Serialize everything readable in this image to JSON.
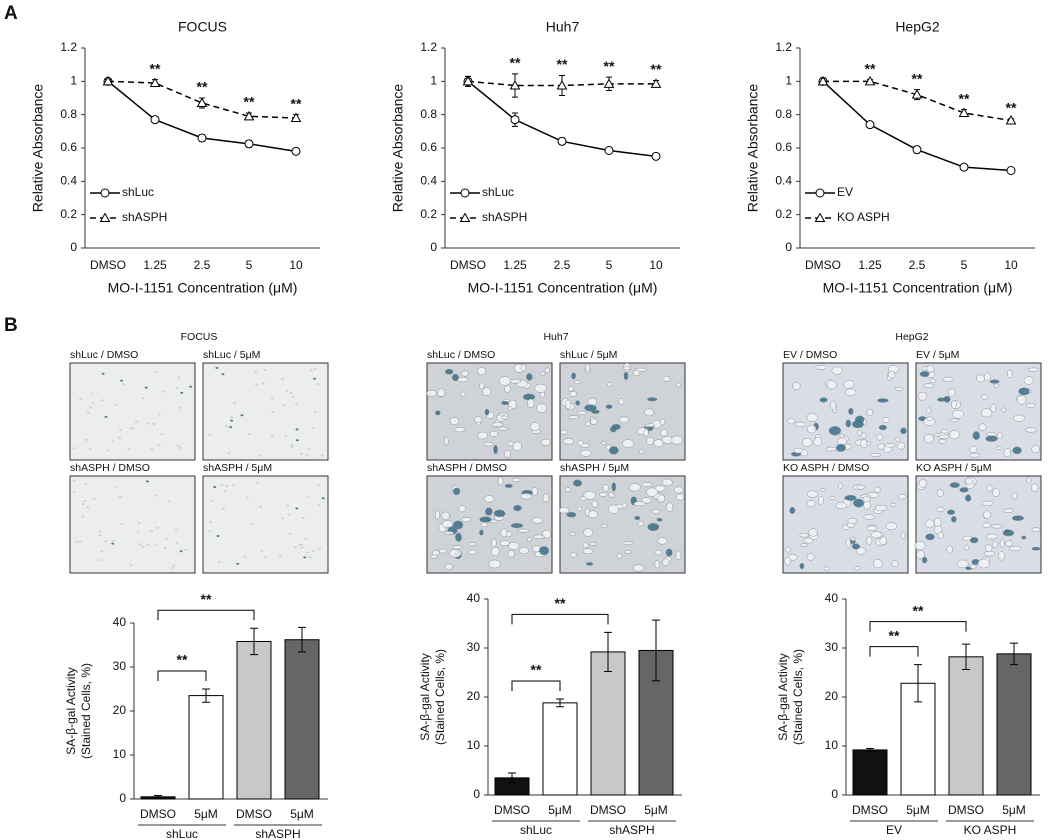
{
  "panel_labels": [
    "A",
    "B"
  ],
  "micrographs": [
    {
      "title": "FOCUS",
      "labels": [
        "shLuc / DMSO",
        "shLuc / 5μM",
        "shASPH / DMSO",
        "shASPH / 5μM"
      ]
    },
    {
      "title": "Huh7",
      "labels": [
        "shLuc / DMSO",
        "shLuc / 5μM",
        "shASPH / DMSO",
        "shASPH / 5μM"
      ]
    },
    {
      "title": "HepG2",
      "labels": [
        "EV / DMSO",
        "EV / 5μM",
        "KO ASPH / DMSO",
        "KO ASPH / 5μM"
      ]
    }
  ],
  "chart_data": [
    {
      "type": "line",
      "title": "FOCUS",
      "x_label": "MO-I-1151 Concentration (μM)",
      "y_label": "Relative Absorbance",
      "categories": [
        "DMSO",
        "1.25",
        "2.5",
        "5",
        "10"
      ],
      "ylim": [
        0,
        1.2
      ],
      "yticks": [
        0,
        0.2,
        0.4,
        0.6,
        0.8,
        1,
        1.2
      ],
      "legend": "lower left",
      "series": [
        {
          "name": "shLuc",
          "color": "#000000",
          "marker": "circle",
          "dash": false,
          "values": [
            1.0,
            0.77,
            0.66,
            0.625,
            0.58
          ],
          "errors": [
            0.01,
            0.01,
            0.02,
            0.02,
            0.01
          ]
        },
        {
          "name": "shASPH",
          "color": "#000000",
          "marker": "triangle",
          "dash": true,
          "values": [
            1.0,
            0.99,
            0.87,
            0.79,
            0.78
          ],
          "errors": [
            0.01,
            0.02,
            0.03,
            0.02,
            0.02
          ]
        }
      ],
      "significance": [
        null,
        "**",
        "**",
        "**",
        "**"
      ]
    },
    {
      "type": "line",
      "title": "Huh7",
      "x_label": "MO-I-1151 Concentration (μM)",
      "y_label": "Relative Absorbance",
      "categories": [
        "DMSO",
        "1.25",
        "2.5",
        "5",
        "10"
      ],
      "ylim": [
        0,
        1.2
      ],
      "yticks": [
        0,
        0.2,
        0.4,
        0.6,
        0.8,
        1,
        1.2
      ],
      "legend": "lower left",
      "series": [
        {
          "name": "shLuc",
          "color": "#000000",
          "marker": "circle",
          "dash": false,
          "values": [
            1.0,
            0.77,
            0.64,
            0.585,
            0.55
          ],
          "errors": [
            0.03,
            0.04,
            0.02,
            0.01,
            0.01
          ]
        },
        {
          "name": "shASPH",
          "color": "#000000",
          "marker": "triangle",
          "dash": true,
          "values": [
            1.0,
            0.975,
            0.975,
            0.985,
            0.985
          ],
          "errors": [
            0.03,
            0.07,
            0.06,
            0.04,
            0.02
          ]
        }
      ],
      "significance": [
        null,
        "**",
        "**",
        "**",
        "**"
      ]
    },
    {
      "type": "line",
      "title": "HepG2",
      "x_label": "MO-I-1151 Concentration (μM)",
      "y_label": "Relative Absorbance",
      "categories": [
        "DMSO",
        "1.25",
        "2.5",
        "5",
        "10"
      ],
      "ylim": [
        0,
        1.2
      ],
      "yticks": [
        0,
        0.2,
        0.4,
        0.6,
        0.8,
        1,
        1.2
      ],
      "legend": "lower left",
      "series": [
        {
          "name": "EV",
          "color": "#000000",
          "marker": "circle",
          "dash": false,
          "values": [
            1.0,
            0.74,
            0.59,
            0.485,
            0.465
          ],
          "errors": [
            0.02,
            0.01,
            0.02,
            0.01,
            0.01
          ]
        },
        {
          "name": "KO ASPH",
          "color": "#000000",
          "marker": "triangle",
          "dash": true,
          "values": [
            1.0,
            1.0,
            0.92,
            0.81,
            0.765
          ],
          "errors": [
            0.02,
            0.01,
            0.03,
            0.02,
            0.01
          ]
        }
      ],
      "significance": [
        null,
        "**",
        "**",
        "**",
        "**"
      ]
    },
    {
      "type": "bar",
      "y_label": [
        "SA-β-gal Activity",
        "(Stained Cells, %)"
      ],
      "categories": [
        "DMSO",
        "5μM",
        "DMSO",
        "5μM"
      ],
      "groups": [
        "shLuc",
        "shASPH"
      ],
      "values": [
        0.5,
        23.5,
        35.8,
        36.2
      ],
      "errors": [
        0.3,
        1.5,
        3.0,
        2.8
      ],
      "colors": [
        "#111111",
        "#ffffff",
        "#c8c8c8",
        "#666666"
      ],
      "ylim": [
        0,
        40
      ],
      "yticks": [
        0,
        10,
        20,
        30,
        40
      ],
      "brackets": [
        {
          "from": 0,
          "to": 1,
          "label": "**"
        },
        {
          "from": 0,
          "to": 2,
          "label": "**"
        }
      ]
    },
    {
      "type": "bar",
      "y_label": [
        "SA-β-gal Activity",
        "(Stained Cells, %)"
      ],
      "categories": [
        "DMSO",
        "5μM",
        "DMSO",
        "5μM"
      ],
      "groups": [
        "shLuc",
        "shASPH"
      ],
      "values": [
        3.5,
        18.8,
        29.2,
        29.5
      ],
      "errors": [
        1.0,
        0.8,
        4.0,
        6.2
      ],
      "colors": [
        "#111111",
        "#ffffff",
        "#c8c8c8",
        "#666666"
      ],
      "ylim": [
        0,
        40
      ],
      "yticks": [
        0,
        10,
        20,
        30,
        40
      ],
      "brackets": [
        {
          "from": 0,
          "to": 1,
          "label": "**"
        },
        {
          "from": 0,
          "to": 2,
          "label": "**"
        }
      ]
    },
    {
      "type": "bar",
      "y_label": [
        "SA-β-gal Activity",
        "(Stained Cells, %)"
      ],
      "categories": [
        "DMSO",
        "5μM",
        "DMSO",
        "5μM"
      ],
      "groups": [
        "EV",
        "KO ASPH"
      ],
      "values": [
        9.2,
        22.8,
        28.2,
        28.8
      ],
      "errors": [
        0.3,
        3.8,
        2.6,
        2.2
      ],
      "colors": [
        "#111111",
        "#ffffff",
        "#c8c8c8",
        "#666666"
      ],
      "ylim": [
        0,
        40
      ],
      "yticks": [
        0,
        10,
        20,
        30,
        40
      ],
      "brackets": [
        {
          "from": 0,
          "to": 1,
          "label": "**"
        },
        {
          "from": 0,
          "to": 2,
          "label": "**"
        }
      ]
    }
  ]
}
